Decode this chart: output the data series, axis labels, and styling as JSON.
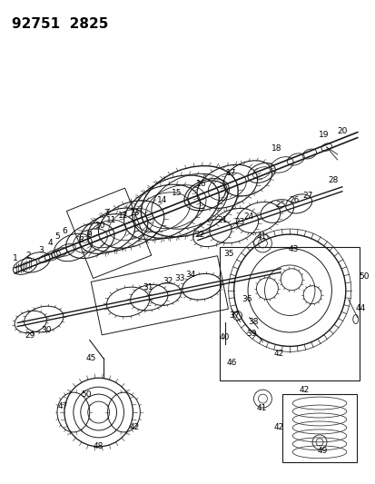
{
  "title": "92751  2825",
  "background_color": "#ffffff",
  "figsize": [
    4.14,
    5.33
  ],
  "dpi": 100,
  "title_fontsize": 11,
  "line_color": "#1a1a1a",
  "label_fontsize": 6.5
}
